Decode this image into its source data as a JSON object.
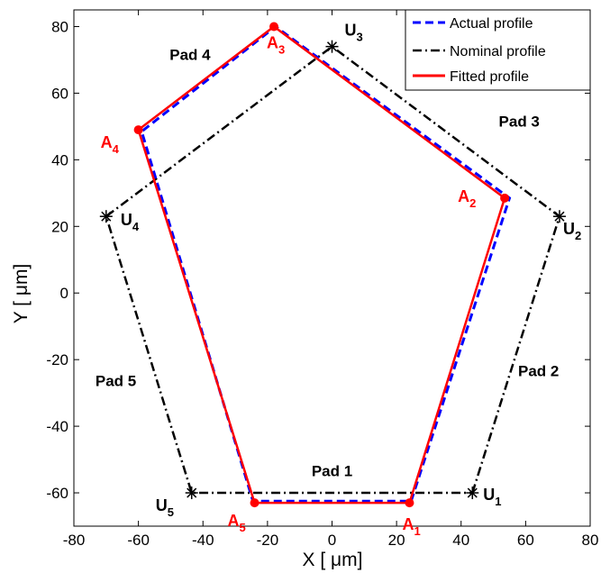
{
  "chart_data": {
    "type": "line",
    "xlabel_prefix": "X [ ",
    "xlabel_unit": "μm",
    "xlabel_suffix": "]",
    "ylabel_prefix": "Y [ ",
    "ylabel_unit": "μm",
    "ylabel_suffix": "]",
    "xlim": [
      -80,
      80
    ],
    "ylim": [
      -70,
      85
    ],
    "x_ticks": [
      -80,
      -60,
      -40,
      -20,
      0,
      20,
      40,
      60,
      80
    ],
    "y_ticks": [
      -60,
      -40,
      -20,
      0,
      20,
      40,
      60,
      80
    ],
    "grid": false,
    "legend_position": "top-right",
    "series": [
      {
        "name": "Actual profile",
        "color": "#0000ff",
        "style": "dashed",
        "points": [
          [
            24.5,
            -62.5
          ],
          [
            55,
            28.5
          ],
          [
            -17.5,
            80
          ],
          [
            -59,
            48.5
          ],
          [
            -24.5,
            -62.5
          ],
          [
            24.5,
            -62.5
          ]
        ]
      },
      {
        "name": "Nominal profile",
        "color": "#000000",
        "style": "dashdot",
        "points": [
          [
            43.5,
            -60
          ],
          [
            70.5,
            23
          ],
          [
            0,
            74
          ],
          [
            -70,
            23
          ],
          [
            -43.5,
            -60
          ],
          [
            43.5,
            -60
          ]
        ]
      },
      {
        "name": "Fitted profile",
        "color": "#ff0000",
        "style": "solid",
        "points": [
          [
            24,
            -63
          ],
          [
            53.5,
            28.5
          ],
          [
            -18,
            80
          ],
          [
            -60,
            49
          ],
          [
            -24,
            -63
          ],
          [
            24,
            -63
          ]
        ]
      }
    ],
    "u_points": [
      {
        "letter": "U",
        "sub": "1",
        "x": 43.5,
        "y": -60
      },
      {
        "letter": "U",
        "sub": "2",
        "x": 70.5,
        "y": 23
      },
      {
        "letter": "U",
        "sub": "3",
        "x": 0,
        "y": 74
      },
      {
        "letter": "U",
        "sub": "4",
        "x": -70,
        "y": 23
      },
      {
        "letter": "U",
        "sub": "5",
        "x": -43.5,
        "y": -60
      }
    ],
    "a_points": [
      {
        "letter": "A",
        "sub": "1",
        "x": 24,
        "y": -63
      },
      {
        "letter": "A",
        "sub": "2",
        "x": 53.5,
        "y": 28.5
      },
      {
        "letter": "A",
        "sub": "3",
        "x": -18,
        "y": 80
      },
      {
        "letter": "A",
        "sub": "4",
        "x": -60,
        "y": 49
      },
      {
        "letter": "A",
        "sub": "5",
        "x": -24,
        "y": -63
      }
    ],
    "annotations": [
      {
        "text": "Pad 1",
        "x": 0,
        "y": -55
      },
      {
        "text": "Pad 2",
        "x": 64,
        "y": -25
      },
      {
        "text": "Pad 3",
        "x": 58,
        "y": 50
      },
      {
        "text": "Pad 4",
        "x": -44,
        "y": 70
      },
      {
        "text": "Pad 5",
        "x": -67,
        "y": -28
      }
    ]
  }
}
